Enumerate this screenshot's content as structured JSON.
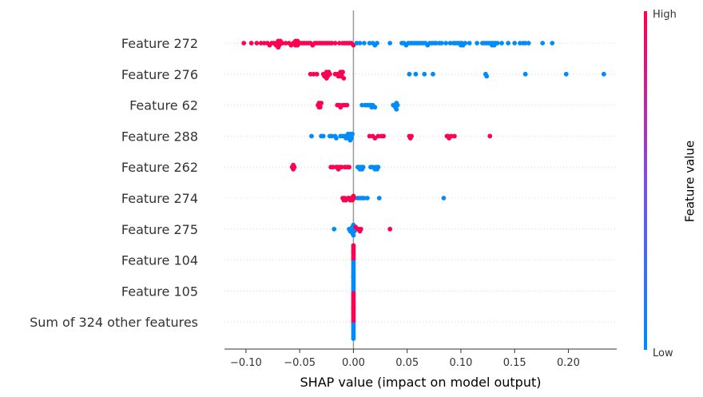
{
  "chart_data": {
    "type": "scatter",
    "subtype": "beeswarm",
    "xlabel": "SHAP value (impact on model output)",
    "xlim": [
      -0.12,
      0.245
    ],
    "xticks": [
      -0.1,
      -0.05,
      0.0,
      0.05,
      0.1,
      0.15,
      0.2
    ],
    "xtick_labels": [
      "−0.10",
      "−0.05",
      "0.00",
      "0.05",
      "0.10",
      "0.15",
      "0.20"
    ],
    "colorbar": {
      "title": "Feature value",
      "high_label": "High",
      "low_label": "Low",
      "high_color": "#ff0051",
      "low_color": "#008bfb"
    },
    "grid": "dotted row lines",
    "features": [
      {
        "name": "Feature 272",
        "points": [
          [
            -0.102,
            1
          ],
          [
            -0.095,
            1
          ],
          [
            -0.09,
            1
          ],
          [
            -0.086,
            1
          ],
          [
            -0.083,
            1
          ],
          [
            -0.08,
            1
          ],
          [
            -0.078,
            1
          ],
          [
            -0.076,
            1
          ],
          [
            -0.074,
            1
          ],
          [
            -0.072,
            1
          ],
          [
            -0.072,
            1
          ],
          [
            -0.071,
            1
          ],
          [
            -0.071,
            1
          ],
          [
            -0.07,
            1
          ],
          [
            -0.07,
            1
          ],
          [
            -0.069,
            1
          ],
          [
            -0.069,
            1
          ],
          [
            -0.068,
            1
          ],
          [
            -0.066,
            1
          ],
          [
            -0.063,
            1
          ],
          [
            -0.06,
            1
          ],
          [
            -0.058,
            1
          ],
          [
            -0.056,
            1
          ],
          [
            -0.055,
            1
          ],
          [
            -0.054,
            1
          ],
          [
            -0.054,
            1
          ],
          [
            -0.053,
            1
          ],
          [
            -0.052,
            1
          ],
          [
            -0.052,
            1
          ],
          [
            -0.05,
            1
          ],
          [
            -0.048,
            1
          ],
          [
            -0.046,
            1
          ],
          [
            -0.044,
            1
          ],
          [
            -0.042,
            1
          ],
          [
            -0.04,
            1
          ],
          [
            -0.038,
            1
          ],
          [
            -0.036,
            1
          ],
          [
            -0.034,
            1
          ],
          [
            -0.032,
            1
          ],
          [
            -0.03,
            1
          ],
          [
            -0.028,
            1
          ],
          [
            -0.026,
            1
          ],
          [
            -0.024,
            1
          ],
          [
            -0.022,
            1
          ],
          [
            -0.02,
            1
          ],
          [
            -0.017,
            1
          ],
          [
            -0.013,
            1
          ],
          [
            -0.01,
            1
          ],
          [
            -0.008,
            1
          ],
          [
            -0.006,
            1
          ],
          [
            -0.004,
            1
          ],
          [
            -0.002,
            1
          ],
          [
            0.0,
            1
          ],
          [
            0.003,
            0
          ],
          [
            0.006,
            0
          ],
          [
            0.01,
            0
          ],
          [
            0.015,
            0
          ],
          [
            0.018,
            0
          ],
          [
            0.02,
            0
          ],
          [
            0.022,
            0
          ],
          [
            0.034,
            0
          ],
          [
            0.045,
            0
          ],
          [
            0.047,
            0
          ],
          [
            0.049,
            0
          ],
          [
            0.051,
            0
          ],
          [
            0.053,
            0
          ],
          [
            0.055,
            0
          ],
          [
            0.057,
            0
          ],
          [
            0.059,
            0
          ],
          [
            0.061,
            0
          ],
          [
            0.063,
            0
          ],
          [
            0.065,
            0
          ],
          [
            0.067,
            0
          ],
          [
            0.069,
            0
          ],
          [
            0.071,
            0
          ],
          [
            0.073,
            0
          ],
          [
            0.075,
            0
          ],
          [
            0.077,
            0
          ],
          [
            0.08,
            0
          ],
          [
            0.082,
            0
          ],
          [
            0.086,
            0
          ],
          [
            0.09,
            0
          ],
          [
            0.093,
            0
          ],
          [
            0.095,
            0
          ],
          [
            0.097,
            0
          ],
          [
            0.099,
            0
          ],
          [
            0.1,
            0
          ],
          [
            0.101,
            0
          ],
          [
            0.102,
            0
          ],
          [
            0.104,
            0
          ],
          [
            0.108,
            0
          ],
          [
            0.115,
            0
          ],
          [
            0.12,
            0
          ],
          [
            0.122,
            0
          ],
          [
            0.124,
            0
          ],
          [
            0.126,
            0
          ],
          [
            0.128,
            0
          ],
          [
            0.129,
            0
          ],
          [
            0.13,
            0
          ],
          [
            0.131,
            0
          ],
          [
            0.132,
            0
          ],
          [
            0.134,
            0
          ],
          [
            0.138,
            0
          ],
          [
            0.144,
            0
          ],
          [
            0.15,
            0
          ],
          [
            0.155,
            0
          ],
          [
            0.158,
            0
          ],
          [
            0.16,
            0
          ],
          [
            0.163,
            0
          ],
          [
            0.176,
            0
          ],
          [
            0.185,
            0
          ]
        ]
      },
      {
        "name": "Feature 276",
        "points": [
          [
            -0.04,
            1
          ],
          [
            -0.037,
            1
          ],
          [
            -0.034,
            1
          ],
          [
            -0.028,
            1
          ],
          [
            -0.027,
            1
          ],
          [
            -0.026,
            1
          ],
          [
            -0.026,
            1
          ],
          [
            -0.025,
            1
          ],
          [
            -0.025,
            1
          ],
          [
            -0.024,
            1
          ],
          [
            -0.024,
            1
          ],
          [
            -0.023,
            1
          ],
          [
            -0.022,
            1
          ],
          [
            -0.017,
            1
          ],
          [
            -0.015,
            1
          ],
          [
            -0.014,
            1
          ],
          [
            -0.013,
            1
          ],
          [
            -0.012,
            1
          ],
          [
            -0.012,
            1
          ],
          [
            -0.011,
            1
          ],
          [
            -0.011,
            1
          ],
          [
            -0.01,
            1
          ],
          [
            -0.009,
            1
          ],
          [
            0.052,
            0
          ],
          [
            0.058,
            0
          ],
          [
            0.066,
            0
          ],
          [
            0.074,
            0
          ],
          [
            0.123,
            0
          ],
          [
            0.124,
            0
          ],
          [
            0.16,
            0
          ],
          [
            0.198,
            0
          ],
          [
            0.233,
            0
          ]
        ]
      },
      {
        "name": "Feature 62",
        "points": [
          [
            -0.033,
            1
          ],
          [
            -0.032,
            1
          ],
          [
            -0.032,
            1
          ],
          [
            -0.031,
            1
          ],
          [
            -0.031,
            1
          ],
          [
            -0.03,
            1
          ],
          [
            -0.015,
            1
          ],
          [
            -0.013,
            1
          ],
          [
            -0.012,
            1
          ],
          [
            -0.01,
            1
          ],
          [
            -0.008,
            1
          ],
          [
            -0.006,
            1
          ],
          [
            0.008,
            0
          ],
          [
            0.011,
            0
          ],
          [
            0.013,
            0
          ],
          [
            0.015,
            0
          ],
          [
            0.016,
            0
          ],
          [
            0.017,
            0
          ],
          [
            0.018,
            0
          ],
          [
            0.02,
            0
          ],
          [
            0.037,
            0
          ],
          [
            0.038,
            0
          ],
          [
            0.039,
            0
          ],
          [
            0.04,
            0
          ],
          [
            0.04,
            0
          ],
          [
            0.041,
            0
          ]
        ]
      },
      {
        "name": "Feature 288",
        "points": [
          [
            -0.039,
            0
          ],
          [
            -0.03,
            0
          ],
          [
            -0.028,
            0
          ],
          [
            -0.022,
            0
          ],
          [
            -0.02,
            0
          ],
          [
            -0.017,
            0
          ],
          [
            -0.016,
            0
          ],
          [
            -0.012,
            0
          ],
          [
            -0.01,
            0
          ],
          [
            -0.008,
            0
          ],
          [
            -0.007,
            0
          ],
          [
            -0.006,
            0
          ],
          [
            -0.005,
            0
          ],
          [
            -0.005,
            0
          ],
          [
            -0.004,
            0
          ],
          [
            -0.004,
            0
          ],
          [
            -0.003,
            0
          ],
          [
            -0.003,
            0
          ],
          [
            -0.002,
            0
          ],
          [
            -0.002,
            0
          ],
          [
            -0.001,
            0
          ],
          [
            0.015,
            1
          ],
          [
            0.018,
            1
          ],
          [
            0.02,
            1
          ],
          [
            0.023,
            1
          ],
          [
            0.026,
            1
          ],
          [
            0.028,
            1
          ],
          [
            0.052,
            1
          ],
          [
            0.053,
            1
          ],
          [
            0.054,
            1
          ],
          [
            0.087,
            1
          ],
          [
            0.088,
            1
          ],
          [
            0.089,
            1
          ],
          [
            0.091,
            1
          ],
          [
            0.094,
            1
          ],
          [
            0.127,
            1
          ]
        ]
      },
      {
        "name": "Feature 262",
        "points": [
          [
            -0.057,
            1
          ],
          [
            -0.056,
            1
          ],
          [
            -0.056,
            1
          ],
          [
            -0.055,
            1
          ],
          [
            -0.021,
            1
          ],
          [
            -0.019,
            1
          ],
          [
            -0.016,
            1
          ],
          [
            -0.015,
            1
          ],
          [
            -0.014,
            1
          ],
          [
            -0.013,
            1
          ],
          [
            -0.011,
            1
          ],
          [
            -0.008,
            1
          ],
          [
            -0.006,
            1
          ],
          [
            -0.004,
            1
          ],
          [
            0.004,
            0
          ],
          [
            0.005,
            0
          ],
          [
            0.006,
            0
          ],
          [
            0.007,
            0
          ],
          [
            0.008,
            0
          ],
          [
            0.009,
            0
          ],
          [
            0.016,
            0
          ],
          [
            0.018,
            0
          ],
          [
            0.02,
            0
          ],
          [
            0.021,
            0
          ],
          [
            0.022,
            0
          ],
          [
            0.023,
            0
          ]
        ]
      },
      {
        "name": "Feature 274",
        "points": [
          [
            -0.01,
            1
          ],
          [
            -0.009,
            1
          ],
          [
            -0.008,
            1
          ],
          [
            -0.007,
            1
          ],
          [
            -0.005,
            1
          ],
          [
            -0.004,
            1
          ],
          [
            -0.003,
            1
          ],
          [
            -0.002,
            1
          ],
          [
            -0.001,
            1
          ],
          [
            0.0,
            1
          ],
          [
            0.001,
            1
          ],
          [
            0.004,
            0
          ],
          [
            0.006,
            0
          ],
          [
            0.008,
            0
          ],
          [
            0.01,
            0
          ],
          [
            0.013,
            0
          ],
          [
            0.024,
            0
          ],
          [
            0.084,
            0
          ]
        ]
      },
      {
        "name": "Feature 275",
        "points": [
          [
            -0.018,
            0
          ],
          [
            -0.004,
            0
          ],
          [
            -0.003,
            0
          ],
          [
            -0.002,
            0
          ],
          [
            -0.002,
            0
          ],
          [
            -0.001,
            0
          ],
          [
            -0.001,
            0
          ],
          [
            0.0,
            0
          ],
          [
            0.0,
            0
          ],
          [
            0.001,
            0
          ],
          [
            0.001,
            0
          ],
          [
            0.002,
            1
          ],
          [
            0.004,
            1
          ],
          [
            0.005,
            1
          ],
          [
            0.006,
            1
          ],
          [
            0.007,
            1
          ],
          [
            0.034,
            1
          ]
        ]
      },
      {
        "name": "Feature 104",
        "points": [
          [
            0.0,
            1
          ],
          [
            0.0,
            0
          ],
          [
            0.0,
            1
          ],
          [
            0.0,
            0
          ],
          [
            0.0,
            1
          ],
          [
            0.0,
            0
          ],
          [
            0.0,
            1
          ],
          [
            0.0,
            0
          ],
          [
            0.0,
            1
          ],
          [
            0.0,
            0
          ],
          [
            0.0,
            1
          ],
          [
            0.0,
            0
          ],
          [
            0.0,
            1
          ],
          [
            0.0,
            0
          ],
          [
            0.0,
            1
          ],
          [
            0.0,
            0
          ]
        ]
      },
      {
        "name": "Feature 105",
        "points": [
          [
            0.0,
            0
          ],
          [
            0.0,
            1
          ],
          [
            0.0,
            0
          ],
          [
            0.0,
            1
          ],
          [
            0.0,
            0
          ],
          [
            0.0,
            1
          ],
          [
            0.0,
            0
          ],
          [
            0.0,
            1
          ],
          [
            0.0,
            0
          ],
          [
            0.0,
            1
          ],
          [
            0.0,
            0
          ],
          [
            0.0,
            1
          ],
          [
            0.0,
            0
          ],
          [
            0.0,
            1
          ],
          [
            0.0,
            0
          ],
          [
            0.0,
            1
          ]
        ]
      },
      {
        "name": "Sum of 324 other features",
        "points": [
          [
            0.0,
            1
          ],
          [
            0.0,
            0
          ],
          [
            0.0,
            1
          ],
          [
            0.0,
            0
          ],
          [
            0.0,
            1
          ],
          [
            0.0,
            0
          ],
          [
            0.0,
            1
          ],
          [
            0.0,
            0
          ],
          [
            0.0,
            1
          ],
          [
            0.0,
            0
          ],
          [
            0.0,
            1
          ],
          [
            0.0,
            0
          ],
          [
            0.0,
            1
          ],
          [
            0.0,
            0
          ],
          [
            0.0,
            1
          ],
          [
            0.0,
            0
          ]
        ]
      }
    ]
  }
}
